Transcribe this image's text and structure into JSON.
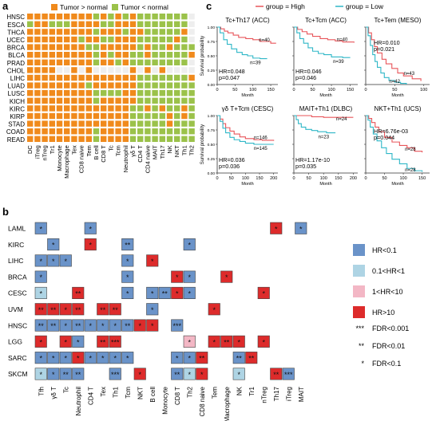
{
  "colors": {
    "up": "#f08a1c",
    "down": "#9bc24a",
    "empty": "#eeeeee",
    "hr_low": "#6a93c9",
    "hr_mid_low": "#aed4e4",
    "hr_mid_high": "#f3b7c5",
    "hr_high": "#dd2b2b",
    "curve_high": "#e8555a",
    "curve_low": "#2fb7c7"
  },
  "panel_a": {
    "label": "a",
    "legend": {
      "up": "Tumor > normal",
      "down": "Tumor < normal"
    },
    "rows": [
      "HNSC",
      "ESCA",
      "THCA",
      "UCEC",
      "BRCA",
      "BLCA",
      "PRAD",
      "CHOL",
      "LIHC",
      "LUAD",
      "LUSC",
      "KICH",
      "KIRC",
      "KIRP",
      "STAD",
      "COAD",
      "READ"
    ],
    "cols": [
      "DC",
      "iTreg",
      "nTreg",
      "Tr1",
      "Monocyte",
      "Macrophage",
      "Tex",
      "CD8 naive",
      "Tem",
      "B cell",
      "CD8 T",
      "Tc",
      "Tcm",
      "Neutrophil",
      "γδ T",
      "CD4 T",
      "CD4 naive",
      "MAIT",
      "Th17",
      "NK",
      "NKT",
      "Th1",
      "Th2"
    ],
    "matrix": [
      "OOOOOOOOOGOGOGOGGGGGGG.",
      "GOOGGGOOOOGGOOOGGGGGGG.",
      "OOOOOOOOOGOOOGOOGGGGGO.",
      "OOOOOOOGOOGGOOOGGGGGOG.",
      "OOOOOOOOGGOOOOOGOGGOGGG",
      "OOOOOOOOOGOGOOGGOGGGGGO",
      "OOOOOOOOOGOOGOGGGGGGGG.",
      "OOOO..O.O.....O.O.O....",
      "OOOOOOOOOOOOOOOGGGGGGGO",
      "OOOOOOOOGOOOOOOGGGGGGGG",
      "OOOOOOOOOGGGGOOGGGGGGGG",
      "OOOOOOOOOGOOOOOGGGGGGGG",
      "OOOOOOOOOOOOOOGGOGOGGOG",
      "OOOOOOOOOOOOOOGGGGGOGOG",
      "OOOOOOOOOOOOOOGGGGGOGGG",
      "OOOOOOOOOGOOOOGGGGGGGGG",
      "OOOOOOOOOGOOOOGGGGGGGGG"
    ]
  },
  "panel_b": {
    "label": "b",
    "rows": [
      "LAML",
      "KIRC",
      "LIHC",
      "BRCA",
      "CESC",
      "UVM",
      "HNSC",
      "LGG",
      "SARC",
      "SKCM"
    ],
    "cols": [
      "Tfh",
      "γδ T",
      "Tc",
      "Neutrophil",
      "CD4 T",
      "Tex",
      "Th1",
      "Tcm",
      "NKT",
      "B cell",
      "Monocyte",
      "CD8 T",
      "Th2",
      "CD8 naive",
      "Tem",
      "Macrophage",
      "NK",
      "Tr1",
      "nTreg",
      "Th17",
      "iTreg",
      "MAIT"
    ],
    "cells": [
      [
        [
          0,
          "b",
          "*"
        ],
        [
          4,
          "b",
          "*"
        ],
        [
          19,
          "r",
          "*"
        ],
        [
          21,
          "b",
          "*"
        ]
      ],
      [
        [
          1,
          "b",
          "*"
        ],
        [
          4,
          "r",
          "*"
        ],
        [
          7,
          "b",
          "**"
        ],
        [
          12,
          "b",
          "*"
        ]
      ],
      [
        [
          0,
          "b",
          "*"
        ],
        [
          1,
          "b",
          "*"
        ],
        [
          2,
          "b",
          "*"
        ],
        [
          7,
          "b",
          "*"
        ],
        [
          9,
          "r",
          "*"
        ]
      ],
      [
        [
          0,
          "b",
          "*"
        ],
        [
          7,
          "b",
          "*"
        ],
        [
          11,
          "r",
          "*"
        ],
        [
          12,
          "b",
          "*"
        ],
        [
          15,
          "r",
          "*"
        ]
      ],
      [
        [
          0,
          "lb",
          "*"
        ],
        [
          3,
          "r",
          "**"
        ],
        [
          7,
          "b",
          "*"
        ],
        [
          9,
          "b",
          "*"
        ],
        [
          10,
          "b",
          "**"
        ],
        [
          11,
          "r",
          "*"
        ],
        [
          12,
          "b",
          "*"
        ],
        [
          18,
          "r",
          "*"
        ]
      ],
      [
        [
          0,
          "r",
          "**"
        ],
        [
          1,
          "r",
          "**"
        ],
        [
          2,
          "r",
          "*"
        ],
        [
          3,
          "r",
          "**"
        ],
        [
          5,
          "r",
          "**"
        ],
        [
          6,
          "r",
          "**"
        ],
        [
          9,
          "b",
          "*"
        ],
        [
          14,
          "r",
          "*"
        ]
      ],
      [
        [
          0,
          "b",
          "**"
        ],
        [
          1,
          "b",
          "**"
        ],
        [
          2,
          "b",
          "*"
        ],
        [
          3,
          "b",
          "**"
        ],
        [
          4,
          "b",
          "*"
        ],
        [
          5,
          "b",
          "*"
        ],
        [
          6,
          "b",
          "*"
        ],
        [
          7,
          "b",
          "**"
        ],
        [
          8,
          "r",
          "*"
        ],
        [
          9,
          "r",
          "*"
        ],
        [
          11,
          "b",
          "***"
        ]
      ],
      [
        [
          0,
          "r",
          "*"
        ],
        [
          2,
          "r",
          "*"
        ],
        [
          3,
          "b",
          "*"
        ],
        [
          5,
          "r",
          "**"
        ],
        [
          6,
          "r",
          "***"
        ],
        [
          12,
          "p",
          "*"
        ],
        [
          14,
          "r",
          "*"
        ],
        [
          15,
          "r",
          "**"
        ],
        [
          16,
          "r",
          "*"
        ],
        [
          18,
          "r",
          "*"
        ]
      ],
      [
        [
          0,
          "b",
          "*"
        ],
        [
          1,
          "b",
          "*"
        ],
        [
          2,
          "b",
          "*"
        ],
        [
          3,
          "r",
          "*"
        ],
        [
          4,
          "b",
          "*"
        ],
        [
          5,
          "b",
          "*"
        ],
        [
          6,
          "b",
          "*"
        ],
        [
          7,
          "b",
          "*"
        ],
        [
          11,
          "b",
          "*"
        ],
        [
          12,
          "b",
          "*"
        ],
        [
          13,
          "r",
          "**"
        ],
        [
          16,
          "b",
          "**"
        ],
        [
          17,
          "r",
          "**"
        ]
      ],
      [
        [
          0,
          "lb",
          "*"
        ],
        [
          1,
          "b",
          "*"
        ],
        [
          2,
          "b",
          "**"
        ],
        [
          3,
          "b",
          "**"
        ],
        [
          6,
          "b",
          "***"
        ],
        [
          8,
          "r",
          "*"
        ],
        [
          11,
          "b",
          "**"
        ],
        [
          12,
          "lb",
          "*"
        ],
        [
          13,
          "r",
          "*"
        ],
        [
          16,
          "lb",
          "*"
        ],
        [
          19,
          "r",
          "**"
        ],
        [
          20,
          "b",
          "***"
        ]
      ]
    ],
    "legend": [
      {
        "key": "b",
        "label": "HR<0.1"
      },
      {
        "key": "lb",
        "label": "0.1<HR<1"
      },
      {
        "key": "p",
        "label": "1<HR<10"
      },
      {
        "key": "r",
        "label": "HR>10"
      }
    ],
    "fdr": [
      {
        "stars": "***",
        "label": "FDR<0.001"
      },
      {
        "stars": "**",
        "label": "FDR<0.01"
      },
      {
        "stars": "*",
        "label": "FDR<0.1"
      }
    ]
  },
  "panel_c": {
    "label": "c",
    "legend": {
      "high": "group = High",
      "low": "group = Low"
    },
    "ylabel": "Survival probability",
    "xlabel": "Month",
    "plots": [
      {
        "title": "Tc+Th17 (ACC)",
        "hr": "HR=0.048",
        "p": "p=0.047",
        "n_high": "n=40",
        "n_low": "n=39",
        "xticks": [
          "0",
          "50",
          "100",
          "150"
        ],
        "xmax": 170,
        "high": [
          [
            0,
            1
          ],
          [
            10,
            0.97
          ],
          [
            20,
            0.93
          ],
          [
            30,
            0.9
          ],
          [
            45,
            0.86
          ],
          [
            60,
            0.82
          ],
          [
            80,
            0.8
          ],
          [
            100,
            0.78
          ],
          [
            120,
            0.75
          ],
          [
            150,
            0.72
          ],
          [
            165,
            0.72
          ]
        ],
        "low": [
          [
            0,
            1
          ],
          [
            8,
            0.9
          ],
          [
            18,
            0.78
          ],
          [
            28,
            0.7
          ],
          [
            40,
            0.62
          ],
          [
            55,
            0.56
          ],
          [
            70,
            0.52
          ],
          [
            85,
            0.5
          ],
          [
            100,
            0.46
          ],
          [
            120,
            0.45
          ],
          [
            140,
            0.45
          ]
        ]
      },
      {
        "title": "Tc+Tcm (ACC)",
        "hr": "HR=0.046",
        "p": "p=0.046",
        "n_high": "n=40",
        "n_low": "n=39",
        "xticks": [
          "0",
          "50",
          "100",
          "150"
        ],
        "xmax": 170,
        "high": [
          [
            0,
            1
          ],
          [
            10,
            0.96
          ],
          [
            22,
            0.92
          ],
          [
            35,
            0.88
          ],
          [
            50,
            0.84
          ],
          [
            70,
            0.8
          ],
          [
            90,
            0.78
          ],
          [
            110,
            0.76
          ],
          [
            130,
            0.74
          ],
          [
            160,
            0.73
          ]
        ],
        "low": [
          [
            0,
            1
          ],
          [
            8,
            0.9
          ],
          [
            16,
            0.8
          ],
          [
            26,
            0.72
          ],
          [
            38,
            0.64
          ],
          [
            50,
            0.58
          ],
          [
            65,
            0.54
          ],
          [
            80,
            0.52
          ],
          [
            100,
            0.48
          ],
          [
            130,
            0.47
          ],
          [
            150,
            0.47
          ]
        ]
      },
      {
        "title": "Tc+Tem (MESO)",
        "hr": "HR=0.010",
        "p": "p=0.021",
        "n_high": "n=43",
        "n_low": "n=42",
        "xticks": [
          "0",
          "50",
          "100"
        ],
        "xmax": 110,
        "high": [
          [
            0,
            1
          ],
          [
            5,
            0.9
          ],
          [
            10,
            0.78
          ],
          [
            15,
            0.66
          ],
          [
            20,
            0.55
          ],
          [
            28,
            0.44
          ],
          [
            35,
            0.36
          ],
          [
            45,
            0.28
          ],
          [
            55,
            0.2
          ],
          [
            65,
            0.15
          ],
          [
            80,
            0.1
          ],
          [
            95,
            0.06
          ]
        ],
        "low": [
          [
            0,
            1
          ],
          [
            4,
            0.85
          ],
          [
            8,
            0.68
          ],
          [
            12,
            0.52
          ],
          [
            16,
            0.4
          ],
          [
            20,
            0.3
          ],
          [
            26,
            0.2
          ],
          [
            32,
            0.12
          ],
          [
            40,
            0.07
          ],
          [
            50,
            0.04
          ],
          [
            60,
            0.02
          ],
          [
            70,
            0
          ]
        ]
      },
      {
        "title": "γδ T+Tcm (CESC)",
        "hr": "HR=0.036",
        "p": "p=0.036",
        "n_high": "n=146",
        "n_low": "n=145",
        "xticks": [
          "0",
          "50",
          "100",
          "150",
          "200"
        ],
        "xmax": 215,
        "high": [
          [
            0,
            1
          ],
          [
            10,
            0.94
          ],
          [
            20,
            0.86
          ],
          [
            30,
            0.79
          ],
          [
            45,
            0.73
          ],
          [
            60,
            0.68
          ],
          [
            80,
            0.63
          ],
          [
            100,
            0.6
          ],
          [
            130,
            0.58
          ],
          [
            160,
            0.57
          ],
          [
            200,
            0.56
          ]
        ],
        "low": [
          [
            0,
            1
          ],
          [
            10,
            0.9
          ],
          [
            20,
            0.78
          ],
          [
            30,
            0.7
          ],
          [
            45,
            0.62
          ],
          [
            60,
            0.58
          ],
          [
            80,
            0.55
          ],
          [
            100,
            0.52
          ],
          [
            130,
            0.5
          ],
          [
            160,
            0.5
          ],
          [
            200,
            0.5
          ]
        ]
      },
      {
        "title": "MAIT+Th1 (DLBC)",
        "hr": "HR=1.17e-10",
        "p": "p=0.035",
        "n_high": "n=24",
        "n_low": "n=23",
        "xticks": [
          "0",
          "50",
          "100",
          "150",
          "200"
        ],
        "xmax": 215,
        "high": [
          [
            0,
            1
          ],
          [
            20,
            1
          ],
          [
            40,
            1
          ],
          [
            60,
            0.98
          ],
          [
            100,
            0.97
          ],
          [
            150,
            0.97
          ],
          [
            200,
            0.97
          ]
        ],
        "low": [
          [
            0,
            1
          ],
          [
            8,
            0.93
          ],
          [
            15,
            0.86
          ],
          [
            25,
            0.8
          ],
          [
            40,
            0.76
          ],
          [
            60,
            0.74
          ],
          [
            80,
            0.72
          ],
          [
            110,
            0.7
          ],
          [
            140,
            0.7
          ]
        ]
      },
      {
        "title": "NKT+Th1 (UCS)",
        "hr": "HR=6.76e-03",
        "p": "p=0.044",
        "n_high": "n=28",
        "n_low": "n=28",
        "xticks": [
          "0",
          "50",
          "100",
          "150"
        ],
        "xmax": 170,
        "high": [
          [
            0,
            1
          ],
          [
            8,
            0.95
          ],
          [
            16,
            0.88
          ],
          [
            25,
            0.8
          ],
          [
            35,
            0.72
          ],
          [
            50,
            0.62
          ],
          [
            70,
            0.54
          ],
          [
            90,
            0.48
          ],
          [
            110,
            0.44
          ],
          [
            130,
            0.38
          ],
          [
            150,
            0.36
          ]
        ],
        "low": [
          [
            0,
            1
          ],
          [
            6,
            0.92
          ],
          [
            12,
            0.8
          ],
          [
            20,
            0.68
          ],
          [
            30,
            0.56
          ],
          [
            42,
            0.44
          ],
          [
            55,
            0.34
          ],
          [
            70,
            0.24
          ],
          [
            90,
            0.16
          ],
          [
            110,
            0.08
          ],
          [
            130,
            0.04
          ],
          [
            150,
            0.02
          ]
        ]
      }
    ]
  }
}
